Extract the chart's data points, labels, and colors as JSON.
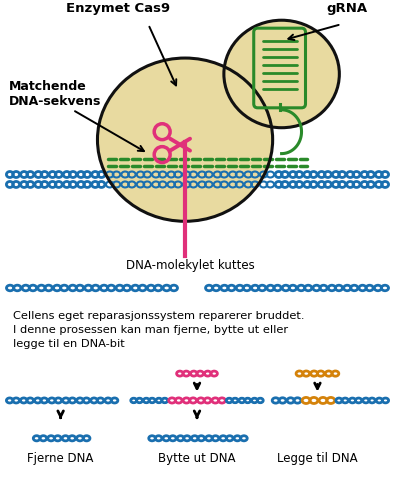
{
  "bg_color": "#ffffff",
  "blue": "#1a6faf",
  "green": "#2a8a2a",
  "pink": "#e0307a",
  "orange": "#d4820a",
  "enzyme_fill": "#e8daa0",
  "enzyme_edge": "#111111",
  "text_enzymet": "Enzymet Cas9",
  "text_grna": "gRNA",
  "text_matchende": "Matchende\nDNA-sekvens",
  "text_kuttes": "DNA-molekylet kuttes",
  "text_cellens": "Cellens eget reparasjonssystem reparerer bruddet.\nI denne prosessen kan man fjerne, bytte ut eller\nlegge til en DNA-bit",
  "text_fjerne": "Fjerne DNA",
  "text_bytte": "Bytte ut DNA",
  "text_legge": "Legge til DNA",
  "figsize": [
    3.94,
    5.0
  ],
  "dpi": 100
}
